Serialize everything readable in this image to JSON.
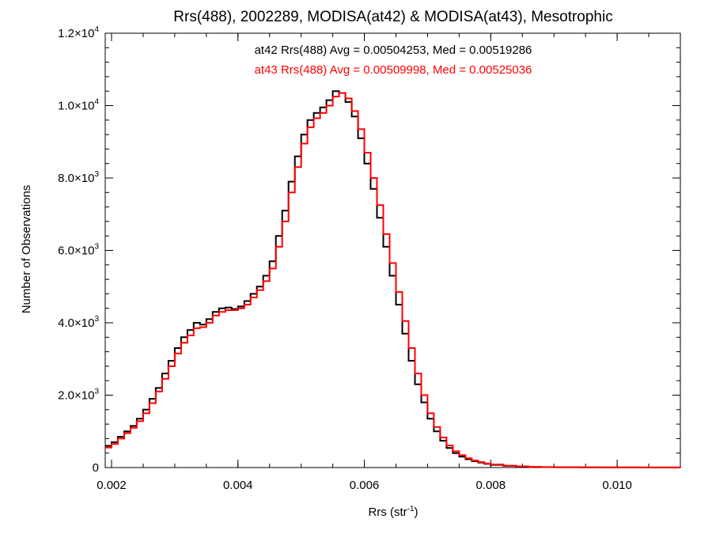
{
  "chart_data": {
    "type": "line",
    "title": "Rrs(488), 2002289, MODISA(at42) & MODISA(at43), Mesotrophic",
    "xlabel": {
      "base": "Rrs (str",
      "sup": "-1",
      "tail": ")"
    },
    "ylabel": "Number of Observations",
    "xlim": [
      0.0019,
      0.011
    ],
    "ylim": [
      0,
      12000
    ],
    "x_ticks": [
      {
        "value": 0.002,
        "label": "0.002"
      },
      {
        "value": 0.004,
        "label": "0.004"
      },
      {
        "value": 0.006,
        "label": "0.006"
      },
      {
        "value": 0.008,
        "label": "0.008"
      },
      {
        "value": 0.01,
        "label": "0.010"
      }
    ],
    "y_ticks": [
      {
        "value": 0,
        "mant": "0",
        "exp": ""
      },
      {
        "value": 2000,
        "mant": "2.0×10",
        "exp": "3"
      },
      {
        "value": 4000,
        "mant": "4.0×10",
        "exp": "3"
      },
      {
        "value": 6000,
        "mant": "6.0×10",
        "exp": "3"
      },
      {
        "value": 8000,
        "mant": "8.0×10",
        "exp": "3"
      },
      {
        "value": 10000,
        "mant": "1.0×10",
        "exp": "4"
      },
      {
        "value": 12000,
        "mant": "1.2×10",
        "exp": "4"
      }
    ],
    "x_minor_step": 0.0005,
    "y_minor_step": 400,
    "annotations": [
      {
        "text": "at42 Rrs(488) Avg = 0.00504253, Med = 0.00519286",
        "color": "#000000"
      },
      {
        "text": "at43 Rrs(488) Avg = 0.00509998, Med = 0.00525036",
        "color": "#ff0000"
      }
    ],
    "series": [
      {
        "color": "#000000",
        "points": [
          [
            0.0019,
            600
          ],
          [
            0.002,
            700
          ],
          [
            0.0021,
            850
          ],
          [
            0.0022,
            1000
          ],
          [
            0.0023,
            1150
          ],
          [
            0.0024,
            1350
          ],
          [
            0.0025,
            1600
          ],
          [
            0.0026,
            1900
          ],
          [
            0.0027,
            2200
          ],
          [
            0.0028,
            2600
          ],
          [
            0.0029,
            2950
          ],
          [
            0.003,
            3300
          ],
          [
            0.0031,
            3600
          ],
          [
            0.0032,
            3800
          ],
          [
            0.0033,
            4000
          ],
          [
            0.0034,
            3950
          ],
          [
            0.0035,
            4100
          ],
          [
            0.0036,
            4300
          ],
          [
            0.0037,
            4400
          ],
          [
            0.0038,
            4420
          ],
          [
            0.0039,
            4380
          ],
          [
            0.004,
            4450
          ],
          [
            0.0041,
            4600
          ],
          [
            0.0042,
            4800
          ],
          [
            0.0043,
            5000
          ],
          [
            0.0044,
            5300
          ],
          [
            0.0045,
            5700
          ],
          [
            0.0046,
            6400
          ],
          [
            0.0047,
            7100
          ],
          [
            0.0048,
            7900
          ],
          [
            0.0049,
            8600
          ],
          [
            0.005,
            9200
          ],
          [
            0.0051,
            9600
          ],
          [
            0.0052,
            9800
          ],
          [
            0.0053,
            9950
          ],
          [
            0.0054,
            10150
          ],
          [
            0.0055,
            10400
          ],
          [
            0.0056,
            10350
          ],
          [
            0.0057,
            10100
          ],
          [
            0.0058,
            9700
          ],
          [
            0.0059,
            9100
          ],
          [
            0.006,
            8400
          ],
          [
            0.0061,
            7700
          ],
          [
            0.0062,
            6900
          ],
          [
            0.0063,
            6100
          ],
          [
            0.0064,
            5300
          ],
          [
            0.0065,
            4500
          ],
          [
            0.0066,
            3700
          ],
          [
            0.0067,
            2950
          ],
          [
            0.0068,
            2300
          ],
          [
            0.0069,
            1800
          ],
          [
            0.007,
            1350
          ],
          [
            0.0071,
            1000
          ],
          [
            0.0072,
            740
          ],
          [
            0.0073,
            540
          ],
          [
            0.0074,
            400
          ],
          [
            0.0075,
            300
          ],
          [
            0.0076,
            230
          ],
          [
            0.0077,
            175
          ],
          [
            0.0078,
            135
          ],
          [
            0.0079,
            100
          ],
          [
            0.008,
            75
          ],
          [
            0.0082,
            45
          ],
          [
            0.0084,
            28
          ],
          [
            0.0086,
            18
          ],
          [
            0.0088,
            12
          ],
          [
            0.009,
            8
          ],
          [
            0.0094,
            5
          ],
          [
            0.0098,
            3
          ],
          [
            0.0104,
            2
          ],
          [
            0.011,
            1
          ]
        ]
      },
      {
        "color": "#ff0000",
        "points": [
          [
            0.0019,
            550
          ],
          [
            0.002,
            650
          ],
          [
            0.0021,
            800
          ],
          [
            0.0022,
            950
          ],
          [
            0.0023,
            1100
          ],
          [
            0.0024,
            1280
          ],
          [
            0.0025,
            1500
          ],
          [
            0.0026,
            1780
          ],
          [
            0.0027,
            2100
          ],
          [
            0.0028,
            2450
          ],
          [
            0.0029,
            2800
          ],
          [
            0.003,
            3150
          ],
          [
            0.0031,
            3450
          ],
          [
            0.0032,
            3650
          ],
          [
            0.0033,
            3850
          ],
          [
            0.0034,
            3880
          ],
          [
            0.0035,
            4000
          ],
          [
            0.0036,
            4200
          ],
          [
            0.0037,
            4300
          ],
          [
            0.0038,
            4350
          ],
          [
            0.0039,
            4350
          ],
          [
            0.004,
            4400
          ],
          [
            0.0041,
            4500
          ],
          [
            0.0042,
            4700
          ],
          [
            0.0043,
            4900
          ],
          [
            0.0044,
            5150
          ],
          [
            0.0045,
            5500
          ],
          [
            0.0046,
            6100
          ],
          [
            0.0047,
            6800
          ],
          [
            0.0048,
            7600
          ],
          [
            0.0049,
            8300
          ],
          [
            0.005,
            8950
          ],
          [
            0.0051,
            9400
          ],
          [
            0.0052,
            9650
          ],
          [
            0.0053,
            9800
          ],
          [
            0.0054,
            10000
          ],
          [
            0.0055,
            10250
          ],
          [
            0.0056,
            10350
          ],
          [
            0.0057,
            10200
          ],
          [
            0.0058,
            9850
          ],
          [
            0.0059,
            9350
          ],
          [
            0.006,
            8700
          ],
          [
            0.0061,
            8000
          ],
          [
            0.0062,
            7250
          ],
          [
            0.0063,
            6450
          ],
          [
            0.0064,
            5650
          ],
          [
            0.0065,
            4850
          ],
          [
            0.0066,
            4050
          ],
          [
            0.0067,
            3300
          ],
          [
            0.0068,
            2600
          ],
          [
            0.0069,
            2000
          ],
          [
            0.007,
            1500
          ],
          [
            0.0071,
            1120
          ],
          [
            0.0072,
            830
          ],
          [
            0.0073,
            610
          ],
          [
            0.0074,
            450
          ],
          [
            0.0075,
            340
          ],
          [
            0.0076,
            255
          ],
          [
            0.0077,
            195
          ],
          [
            0.0078,
            150
          ],
          [
            0.0079,
            112
          ],
          [
            0.008,
            85
          ],
          [
            0.0082,
            52
          ],
          [
            0.0084,
            32
          ],
          [
            0.0086,
            20
          ],
          [
            0.0088,
            14
          ],
          [
            0.009,
            9
          ],
          [
            0.0094,
            6
          ],
          [
            0.0098,
            4
          ],
          [
            0.0104,
            2
          ],
          [
            0.011,
            1
          ]
        ]
      }
    ]
  }
}
